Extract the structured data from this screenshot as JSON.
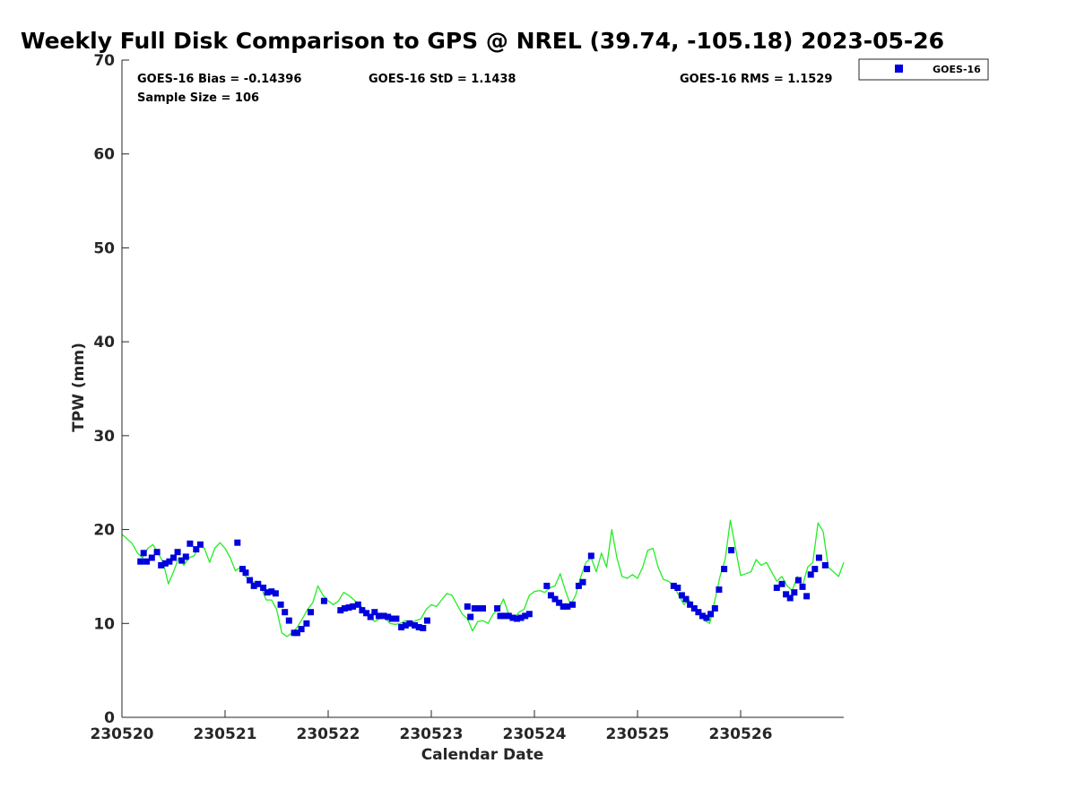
{
  "chart_data": {
    "type": "scatter",
    "title": "Weekly Full Disk Comparison to GPS @ NREL (39.74, -105.18) 2023-05-26",
    "xlabel": "Calendar Date",
    "ylabel": "TPW (mm)",
    "xlim": [
      0,
      7
    ],
    "ylim": [
      0,
      70
    ],
    "xticks": [
      0,
      1,
      2,
      3,
      4,
      5,
      6
    ],
    "xtick_labels": [
      "230520",
      "230521",
      "230522",
      "230523",
      "230524",
      "230525",
      "230526"
    ],
    "yticks": [
      0,
      10,
      20,
      30,
      40,
      50,
      60,
      70
    ],
    "ytick_labels": [
      "0",
      "10",
      "20",
      "30",
      "40",
      "50",
      "60",
      "70"
    ],
    "stats": {
      "bias": "GOES-16 Bias = -0.14396",
      "std": "GOES-16 StD = 1.1438",
      "rms": "GOES-16 RMS = 1.1529",
      "sample_size": "Sample Size = 106"
    },
    "legend": {
      "entries": [
        "GOES-16"
      ],
      "placement": "outside-top-right"
    },
    "colors": {
      "goes16": "#0000dd",
      "gps": "#22ee22",
      "axis": "#262626"
    },
    "series": [
      {
        "name": "GOES-16",
        "style": "square-markers",
        "x": [
          0.18,
          0.21,
          0.24,
          0.29,
          0.34,
          0.38,
          0.42,
          0.46,
          0.5,
          0.54,
          0.58,
          0.62,
          0.66,
          0.72,
          0.76,
          1.12,
          1.17,
          1.2,
          1.24,
          1.28,
          1.32,
          1.37,
          1.41,
          1.45,
          1.49,
          1.54,
          1.58,
          1.62,
          1.67,
          1.7,
          1.74,
          1.79,
          1.83,
          1.96,
          2.12,
          2.16,
          2.2,
          2.24,
          2.29,
          2.33,
          2.37,
          2.41,
          2.45,
          2.49,
          2.54,
          2.58,
          2.62,
          2.66,
          2.71,
          2.75,
          2.79,
          2.84,
          2.88,
          2.92,
          2.96,
          3.35,
          3.38,
          3.42,
          3.46,
          3.5,
          3.64,
          3.67,
          3.71,
          3.75,
          3.79,
          3.83,
          3.87,
          3.91,
          3.95,
          4.12,
          4.16,
          4.2,
          4.24,
          4.28,
          4.32,
          4.37,
          4.43,
          4.47,
          4.51,
          4.55,
          5.35,
          5.39,
          5.43,
          5.47,
          5.51,
          5.55,
          5.59,
          5.63,
          5.67,
          5.71,
          5.75,
          5.79,
          5.84,
          5.91,
          6.35,
          6.4,
          6.44,
          6.48,
          6.52,
          6.56,
          6.6,
          6.64,
          6.68,
          6.72,
          6.76,
          6.82
        ],
        "y": [
          16.6,
          17.5,
          16.6,
          17.0,
          17.6,
          16.2,
          16.4,
          16.6,
          17.0,
          17.6,
          16.7,
          17.1,
          18.5,
          17.9,
          18.4,
          18.6,
          15.8,
          15.4,
          14.6,
          14.0,
          14.2,
          13.8,
          13.3,
          13.4,
          13.2,
          12.0,
          11.2,
          10.3,
          9.0,
          9.0,
          9.4,
          10.0,
          11.2,
          12.4,
          11.4,
          11.6,
          11.7,
          11.8,
          12.0,
          11.4,
          11.1,
          10.7,
          11.2,
          10.8,
          10.8,
          10.7,
          10.5,
          10.5,
          9.6,
          9.8,
          10.0,
          9.8,
          9.6,
          9.5,
          10.3,
          11.8,
          10.7,
          11.6,
          11.6,
          11.6,
          11.6,
          10.8,
          10.8,
          10.8,
          10.6,
          10.5,
          10.6,
          10.8,
          11.0,
          14.0,
          13.0,
          12.6,
          12.2,
          11.8,
          11.8,
          12.0,
          14.0,
          14.4,
          15.8,
          17.2,
          14.0,
          13.8,
          13.0,
          12.6,
          12.0,
          11.6,
          11.2,
          10.8,
          10.6,
          11.0,
          11.6,
          13.6,
          15.8,
          17.8,
          13.8,
          14.2,
          13.1,
          12.7,
          13.3,
          14.6,
          13.9,
          12.9,
          15.2,
          15.8,
          17.0,
          16.2
        ]
      },
      {
        "name": "GPS",
        "style": "line",
        "x": [
          0.0,
          0.05,
          0.1,
          0.15,
          0.2,
          0.25,
          0.3,
          0.35,
          0.4,
          0.45,
          0.5,
          0.55,
          0.6,
          0.65,
          0.7,
          0.75,
          0.8,
          0.85,
          0.9,
          0.95,
          1.0,
          1.05,
          1.1,
          1.15,
          1.2,
          1.25,
          1.3,
          1.35,
          1.4,
          1.45,
          1.5,
          1.55,
          1.6,
          1.65,
          1.7,
          1.75,
          1.8,
          1.85,
          1.9,
          1.95,
          2.0,
          2.05,
          2.1,
          2.15,
          2.2,
          2.25,
          2.3,
          2.35,
          2.4,
          2.45,
          2.5,
          2.55,
          2.6,
          2.65,
          2.7,
          2.75,
          2.8,
          2.85,
          2.9,
          2.95,
          3.0,
          3.05,
          3.1,
          3.15,
          3.2,
          3.25,
          3.3,
          3.35,
          3.4,
          3.45,
          3.5,
          3.55,
          3.6,
          3.65,
          3.7,
          3.75,
          3.8,
          3.85,
          3.9,
          3.95,
          4.0,
          4.05,
          4.1,
          4.15,
          4.2,
          4.25,
          4.3,
          4.35,
          4.4,
          4.45,
          4.5,
          4.55,
          4.6,
          4.65,
          4.7,
          4.75,
          4.8,
          4.85,
          4.9,
          4.95,
          5.0,
          5.05,
          5.1,
          5.15,
          5.2,
          5.25,
          5.3,
          5.35,
          5.4,
          5.45,
          5.5,
          5.55,
          5.6,
          5.65,
          5.7,
          5.75,
          5.8,
          5.85,
          5.9,
          5.95,
          6.0,
          6.05,
          6.1,
          6.15,
          6.2,
          6.25,
          6.3,
          6.35,
          6.4,
          6.45,
          6.5,
          6.55,
          6.6,
          6.65,
          6.7,
          6.75,
          6.8,
          6.85,
          6.9,
          6.95,
          7.0
        ],
        "y": [
          19.5,
          19.0,
          18.5,
          17.5,
          17.0,
          18.0,
          18.4,
          17.5,
          16.5,
          14.2,
          15.5,
          17.0,
          16.2,
          17.0,
          17.2,
          18.3,
          18.0,
          16.5,
          18.0,
          18.6,
          18.0,
          17.0,
          15.6,
          16.0,
          15.0,
          14.3,
          14.5,
          13.8,
          12.5,
          12.5,
          11.5,
          9.0,
          8.6,
          9.0,
          9.6,
          10.5,
          11.5,
          12.2,
          14.0,
          13.0,
          12.4,
          12.0,
          12.4,
          13.3,
          13.0,
          12.5,
          12.0,
          11.5,
          10.8,
          10.2,
          10.5,
          10.6,
          10.0,
          9.9,
          10.0,
          10.3,
          10.0,
          10.3,
          10.5,
          11.5,
          12.0,
          11.8,
          12.5,
          13.2,
          13.0,
          12.0,
          11.0,
          10.5,
          9.2,
          10.2,
          10.3,
          10.0,
          11.0,
          11.5,
          12.6,
          11.0,
          10.5,
          11.2,
          11.5,
          13.0,
          13.4,
          13.5,
          13.3,
          13.8,
          14.0,
          15.3,
          13.5,
          12.0,
          13.0,
          15.0,
          16.5,
          17.0,
          15.5,
          17.5,
          16.0,
          20.0,
          17.0,
          15.0,
          14.8,
          15.2,
          14.8,
          16.0,
          17.8,
          18.0,
          16.0,
          14.7,
          14.5,
          14.0,
          13.0,
          12.0,
          12.5,
          11.5,
          11.0,
          10.3,
          10.0,
          12.5,
          15.0,
          16.8,
          21.0,
          18.0,
          15.1,
          15.3,
          15.5,
          16.8,
          16.2,
          16.5,
          15.5,
          14.5,
          15.0,
          14.0,
          13.5,
          15.0,
          14.0,
          16.0,
          16.5,
          20.7,
          19.8,
          16.0,
          15.5,
          15.0,
          16.5
        ]
      }
    ]
  }
}
